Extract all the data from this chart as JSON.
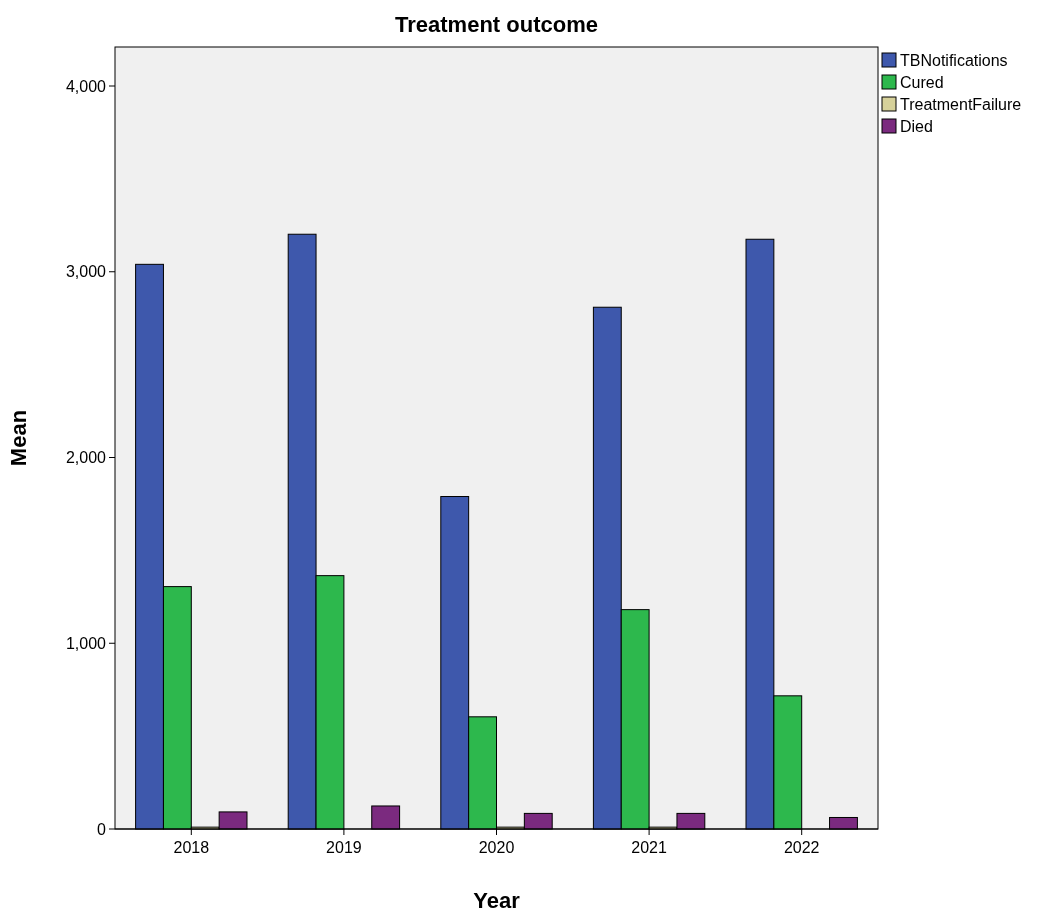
{
  "chart_data": {
    "type": "bar",
    "title": "Treatment outcome",
    "xlabel": "Year",
    "ylabel": "Mean",
    "categories": [
      "2018",
      "2019",
      "2020",
      "2021",
      "2022"
    ],
    "series": [
      {
        "name": "TBNotifications",
        "color": "#3e58ac",
        "values": [
          3040,
          3202,
          1790,
          2809,
          3175
        ]
      },
      {
        "name": "Cured",
        "color": "#2db84d",
        "values": [
          1305,
          1364,
          604,
          1181,
          717
        ]
      },
      {
        "name": "TreatmentFailure",
        "color": "#d6d19a",
        "values": [
          10,
          null,
          10,
          10,
          null
        ]
      },
      {
        "name": "Died",
        "color": "#7b2a7f",
        "values": [
          92,
          124,
          84,
          84,
          62
        ]
      }
    ],
    "ylim": [
      0,
      4210
    ],
    "yticks": [
      {
        "value": 0,
        "label": "0"
      },
      {
        "value": 1000,
        "label": "1,000"
      },
      {
        "value": 2000,
        "label": "2,000"
      },
      {
        "value": 3000,
        "label": "3,000"
      },
      {
        "value": 4000,
        "label": "4,000"
      }
    ],
    "grid": false,
    "legend": "top right"
  }
}
